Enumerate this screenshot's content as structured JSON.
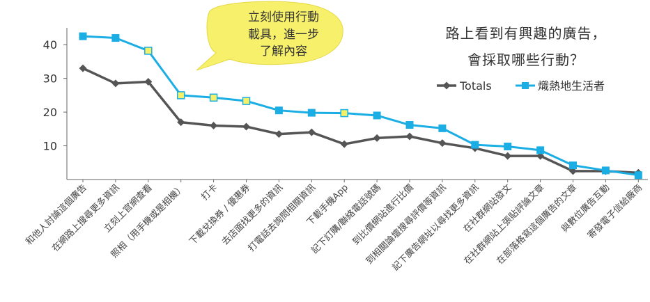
{
  "title": {
    "line1": "路上看到有興趣的廣告，",
    "line2": "會採取哪些行動？"
  },
  "callout": {
    "lines": [
      "立刻使用行動",
      "載具，進一步",
      "了解內容"
    ]
  },
  "colors": {
    "totals": "#555555",
    "lifestyle": "#1aaee5",
    "highlight_marker": "#f5f06a",
    "bubble": "#f7f06b",
    "axis": "#666666",
    "grid": "#e6e6e6"
  },
  "chart_data": {
    "type": "line",
    "ylim": [
      0,
      45
    ],
    "yticks": [
      10,
      20,
      30,
      40
    ],
    "grid": false,
    "legend_position": "top-right",
    "categories": [
      "和他人討論這個廣告",
      "在網路上搜尋更多資訊",
      "立刻上官網查看",
      "照相（用手機或是相機）",
      "打卡",
      "下載兌換券 / 優惠券",
      "去店面找更多的資訊",
      "打電話去詢問相關資訊",
      "下載手機App",
      "記下訂購/聯絡電話號碼",
      "到比價網站進行比價",
      "到相關論壇搜尋評價等資訊",
      "記下廣告網址以尋找更多資訊",
      "在社群網站發文",
      "在社群網站上張貼評論文章",
      "在部落格寫這個廣告的文章",
      "與數位廣告互動",
      "寄發電子信給廠商"
    ],
    "series": [
      {
        "name": "Totals",
        "values": [
          33,
          28.5,
          29,
          17,
          16,
          15.7,
          13.5,
          14,
          10.5,
          12.3,
          12.8,
          10.8,
          9.3,
          7,
          7,
          2.5,
          2.5,
          2
        ]
      },
      {
        "name": "熾熱地生活者",
        "values": [
          42.5,
          42,
          38.2,
          25,
          24.3,
          23.3,
          20.5,
          19.8,
          19.7,
          19,
          16.2,
          15.2,
          10.3,
          9.8,
          8.7,
          4.2,
          2.7,
          1.3
        ],
        "highlight_indices": [
          2,
          3,
          4,
          5,
          8
        ]
      }
    ]
  }
}
